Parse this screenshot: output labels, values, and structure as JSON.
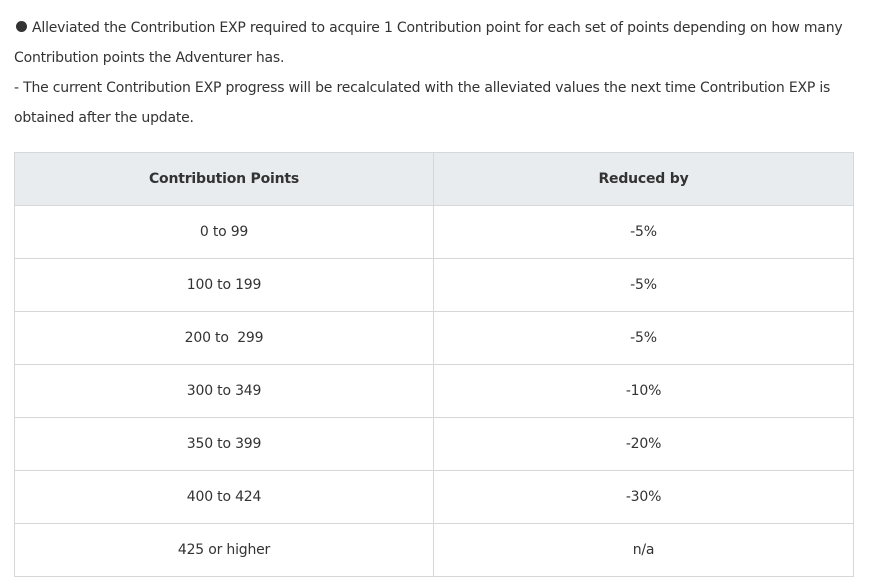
{
  "notes": {
    "bullet_icon": "filled-circle-bullet",
    "line1": "Alleviated the Contribution EXP required to acquire 1 Contribution point for each set of points depending on how many Contribution points the Adventurer has.",
    "line2": "- The current Contribution EXP progress will be recalculated with the alleviated values the next time Contribution EXP is obtained after the update."
  },
  "table": {
    "headers": [
      "Contribution Points",
      "Reduced by"
    ],
    "rows": [
      [
        "0 to 99",
        "-5%"
      ],
      [
        "100 to 199",
        "-5%"
      ],
      [
        "200 to  299",
        "-5%"
      ],
      [
        "300 to 349",
        "-10%"
      ],
      [
        "350 to 399",
        "-20%"
      ],
      [
        "400 to 424",
        "-30%"
      ],
      [
        "425 or higher",
        "n/a"
      ]
    ]
  }
}
